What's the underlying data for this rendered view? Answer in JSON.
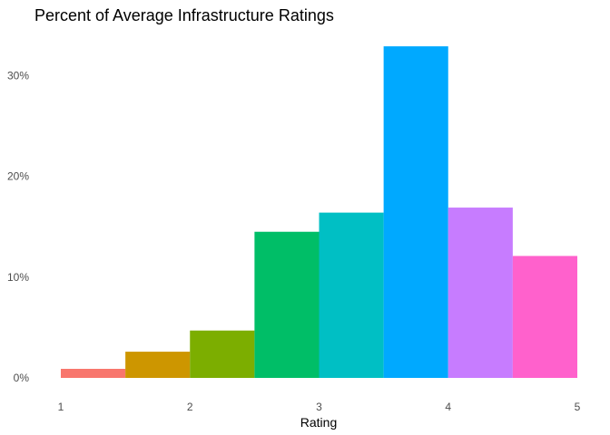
{
  "chart_data": {
    "type": "bar",
    "title": "Percent of Average Infrastructure Ratings",
    "xlabel": "Rating",
    "ylabel": "",
    "bins": [
      {
        "x_start": 1.0,
        "x_end": 1.5,
        "value": 0.009,
        "color": "#F8766D"
      },
      {
        "x_start": 1.5,
        "x_end": 2.0,
        "value": 0.026,
        "color": "#CD9600"
      },
      {
        "x_start": 2.0,
        "x_end": 2.5,
        "value": 0.047,
        "color": "#7CAE00"
      },
      {
        "x_start": 2.5,
        "x_end": 3.0,
        "value": 0.145,
        "color": "#00BE67"
      },
      {
        "x_start": 3.0,
        "x_end": 3.5,
        "value": 0.164,
        "color": "#00BFC4"
      },
      {
        "x_start": 3.5,
        "x_end": 4.0,
        "value": 0.329,
        "color": "#00A9FF"
      },
      {
        "x_start": 4.0,
        "x_end": 4.5,
        "value": 0.169,
        "color": "#C77CFF"
      },
      {
        "x_start": 4.5,
        "x_end": 5.0,
        "value": 0.121,
        "color": "#FF61CC"
      }
    ],
    "x_ticks": [
      1,
      2,
      3,
      4,
      5
    ],
    "y_ticks": [
      {
        "value": 0.0,
        "label": "0%"
      },
      {
        "value": 0.1,
        "label": "10%"
      },
      {
        "value": 0.2,
        "label": "20%"
      },
      {
        "value": 0.3,
        "label": "30%"
      }
    ],
    "xlim": [
      1,
      5
    ],
    "ylim": [
      0,
      0.33
    ],
    "grid": false,
    "legend": "none"
  }
}
